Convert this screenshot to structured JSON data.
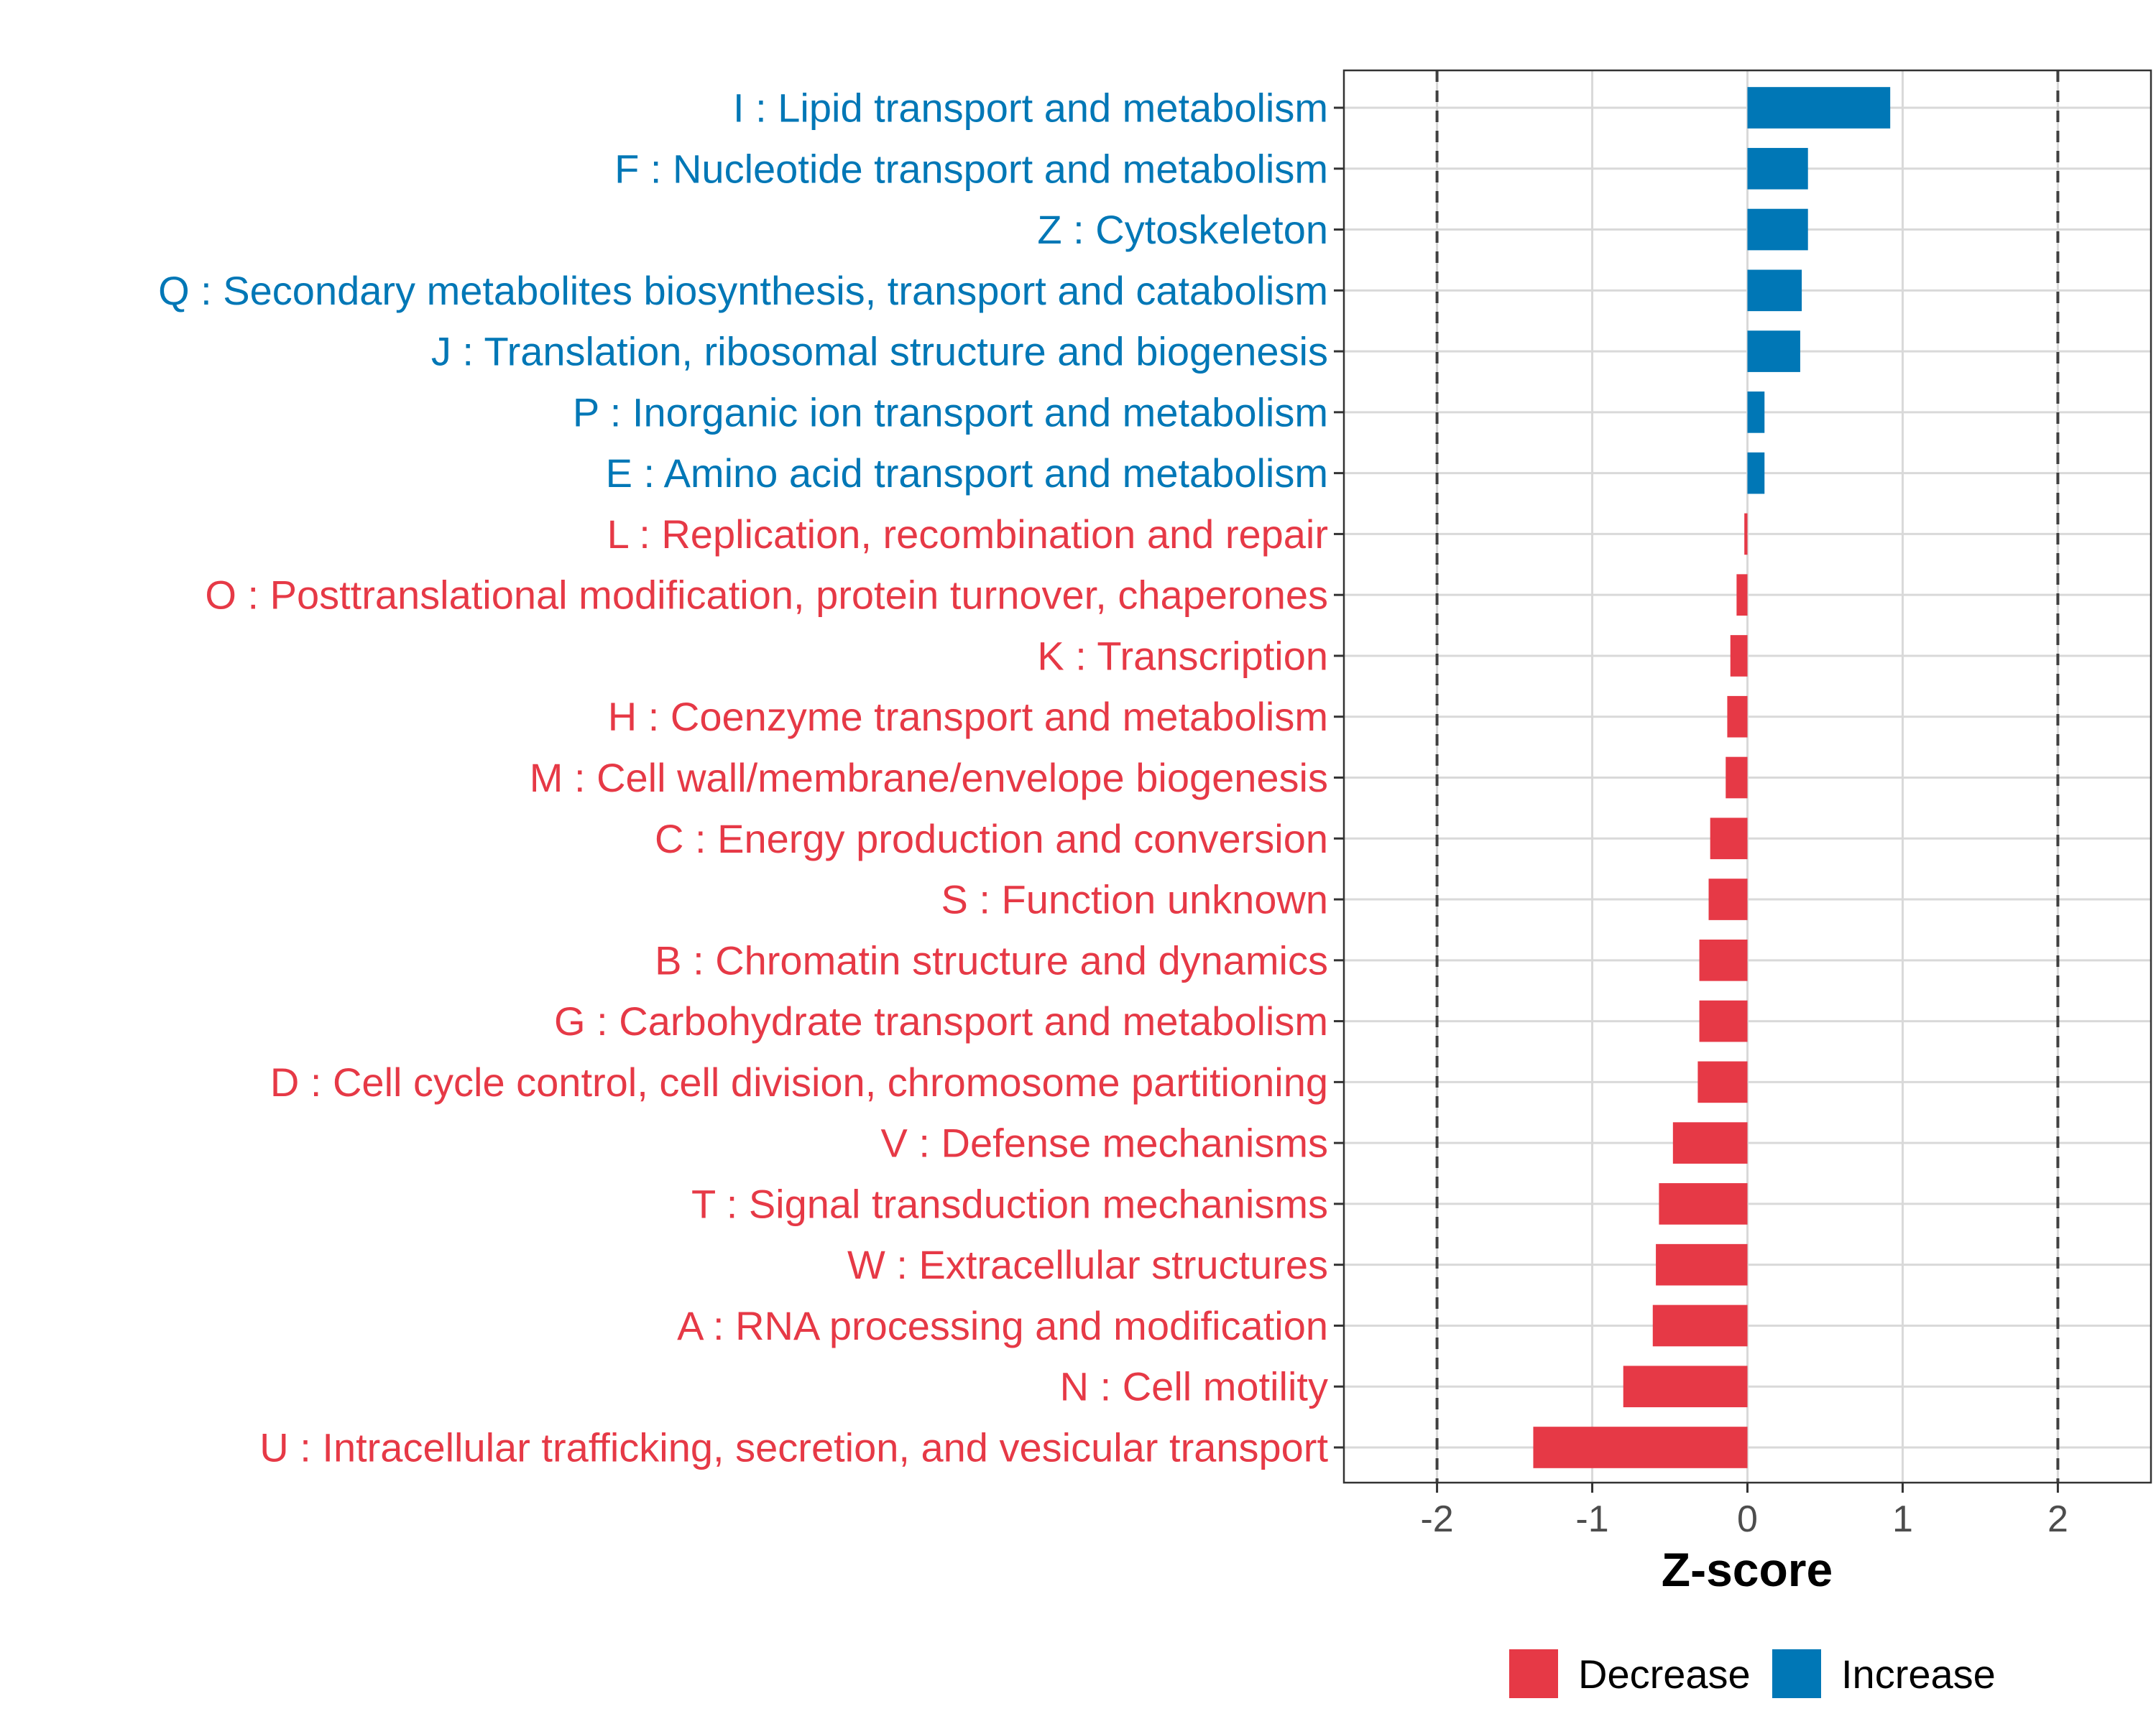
{
  "chart_data": {
    "type": "bar",
    "orientation": "horizontal",
    "categories": [
      "I : Lipid transport and metabolism",
      "F : Nucleotide transport and metabolism",
      "Z : Cytoskeleton",
      "Q : Secondary metabolites biosynthesis, transport and catabolism",
      "J : Translation, ribosomal structure and biogenesis",
      "P : Inorganic ion transport and metabolism",
      "E : Amino acid transport and metabolism",
      "L : Replication, recombination and repair",
      "O : Posttranslational modification, protein turnover, chaperones",
      "K : Transcription",
      "H : Coenzyme transport and metabolism",
      "M : Cell wall/membrane/envelope biogenesis",
      "C : Energy production and conversion",
      "S : Function unknown",
      "B : Chromatin structure and dynamics",
      "G : Carbohydrate transport and metabolism",
      "D : Cell cycle control, cell division, chromosome partitioning",
      "V : Defense mechanisms",
      "T : Signal transduction mechanisms",
      "W : Extracellular structures",
      "A : RNA processing and modification",
      "N : Cell motility",
      "U : Intracellular trafficking, secretion, and vesicular transport"
    ],
    "values": [
      0.92,
      0.39,
      0.39,
      0.35,
      0.34,
      0.11,
      0.11,
      -0.02,
      -0.07,
      -0.11,
      -0.13,
      -0.14,
      -0.24,
      -0.25,
      -0.31,
      -0.31,
      -0.32,
      -0.48,
      -0.57,
      -0.59,
      -0.61,
      -0.8,
      -1.38
    ],
    "xlabel": "Z-score",
    "ylabel": "",
    "xlim": [
      -2.6,
      2.6
    ],
    "xticks": [
      -2,
      -1,
      0,
      1,
      2
    ],
    "xtick_labels": [
      "-2",
      "-1",
      "0",
      "1",
      "2"
    ],
    "reference_lines": [
      -2,
      2
    ],
    "grid": true,
    "legend": {
      "position": "bottom",
      "entries": [
        {
          "label": "Decrease",
          "color": "#e63946"
        },
        {
          "label": "Increase",
          "color": "#0077b6"
        }
      ]
    },
    "colors": {
      "increase": "#0077b6",
      "decrease": "#e63946"
    }
  }
}
